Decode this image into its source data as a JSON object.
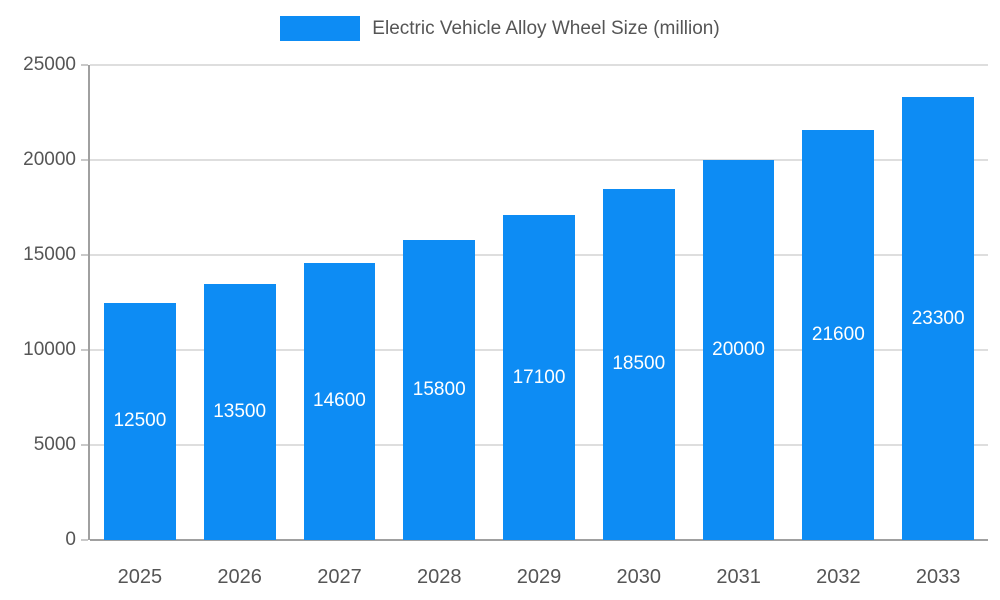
{
  "chart_data": {
    "type": "bar",
    "title": "Electric Vehicle Alloy Wheel Size (million)",
    "categories": [
      "2025",
      "2026",
      "2027",
      "2028",
      "2029",
      "2030",
      "2031",
      "2032",
      "2033"
    ],
    "values": [
      12500,
      13500,
      14600,
      15800,
      17100,
      18500,
      20000,
      21600,
      23300
    ],
    "xlabel": "",
    "ylabel": "",
    "ylim": [
      0,
      25000
    ],
    "yticks": [
      0,
      5000,
      10000,
      15000,
      20000,
      25000
    ],
    "grid": true,
    "legend_position": "top",
    "bar_color": "#0d8cf4",
    "value_label_color": "#ffffff",
    "axis_text_color": "#555555",
    "gridline_color": "#dedede",
    "axis_line_color": "#a0a0a0"
  },
  "legend": {
    "label": "Electric Vehicle Alloy Wheel Size (million)"
  }
}
